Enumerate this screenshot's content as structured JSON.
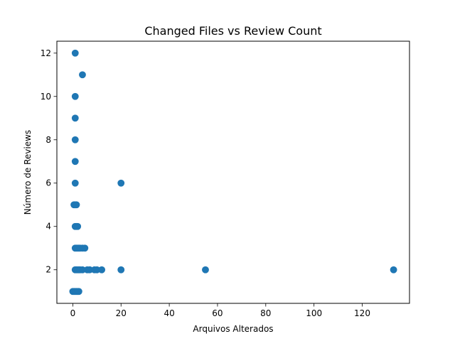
{
  "chart_data": {
    "type": "scatter",
    "title": "Changed Files vs Review Count",
    "xlabel": "Arquivos Alterados",
    "ylabel": "Número de Reviews",
    "xlim": [
      -6.6,
      139.6
    ],
    "ylim": [
      0.45,
      12.55
    ],
    "xticks": [
      0,
      20,
      40,
      60,
      80,
      100,
      120
    ],
    "yticks": [
      2,
      4,
      6,
      8,
      10,
      12
    ],
    "grid": false,
    "legend": "none",
    "color": "#1f77b4",
    "points": [
      {
        "x": 0,
        "y": 1
      },
      {
        "x": 0.5,
        "y": 1
      },
      {
        "x": 1,
        "y": 1
      },
      {
        "x": 1.5,
        "y": 1
      },
      {
        "x": 2,
        "y": 1
      },
      {
        "x": 2.5,
        "y": 1
      },
      {
        "x": 1,
        "y": 2
      },
      {
        "x": 1.5,
        "y": 2
      },
      {
        "x": 2,
        "y": 2
      },
      {
        "x": 2.5,
        "y": 2
      },
      {
        "x": 3,
        "y": 2
      },
      {
        "x": 4,
        "y": 2
      },
      {
        "x": 6,
        "y": 2
      },
      {
        "x": 7,
        "y": 2
      },
      {
        "x": 9,
        "y": 2
      },
      {
        "x": 10,
        "y": 2
      },
      {
        "x": 12,
        "y": 2
      },
      {
        "x": 20,
        "y": 2
      },
      {
        "x": 55,
        "y": 2
      },
      {
        "x": 133,
        "y": 2
      },
      {
        "x": 1,
        "y": 3
      },
      {
        "x": 1.5,
        "y": 3
      },
      {
        "x": 2,
        "y": 3
      },
      {
        "x": 2.5,
        "y": 3
      },
      {
        "x": 3,
        "y": 3
      },
      {
        "x": 4,
        "y": 3
      },
      {
        "x": 5,
        "y": 3
      },
      {
        "x": 1,
        "y": 4
      },
      {
        "x": 1.5,
        "y": 4
      },
      {
        "x": 2,
        "y": 4
      },
      {
        "x": 0.5,
        "y": 5
      },
      {
        "x": 1,
        "y": 5
      },
      {
        "x": 1.5,
        "y": 5
      },
      {
        "x": 1,
        "y": 6
      },
      {
        "x": 20,
        "y": 6
      },
      {
        "x": 1,
        "y": 7
      },
      {
        "x": 1,
        "y": 8
      },
      {
        "x": 1,
        "y": 9
      },
      {
        "x": 1,
        "y": 10
      },
      {
        "x": 4,
        "y": 11
      },
      {
        "x": 1,
        "y": 12
      }
    ]
  }
}
